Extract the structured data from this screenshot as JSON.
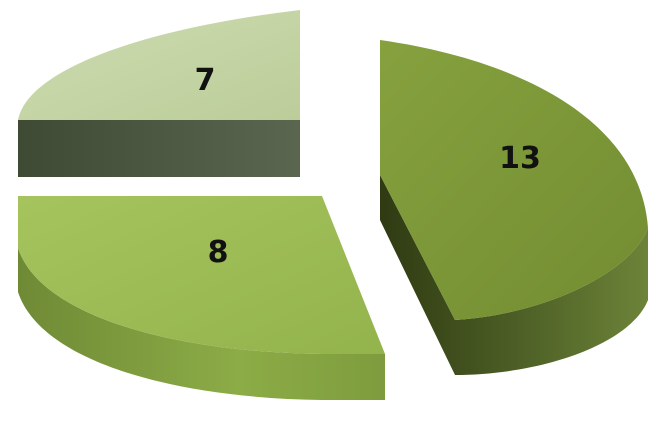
{
  "chart_data": {
    "type": "pie",
    "style": "3d-exploded",
    "legend": "none",
    "values": [
      13,
      8,
      7
    ],
    "labels": [
      "13",
      "8",
      "7"
    ],
    "colors": {
      "slice_13_top": "#7f9a3a",
      "slice_13_side": "#4c5e25",
      "slice_8_top": "#9dbd55",
      "slice_8_side": "#7e9c3d",
      "slice_7_top": "#c6d6a6",
      "slice_7_side": "#4f5a45"
    }
  }
}
